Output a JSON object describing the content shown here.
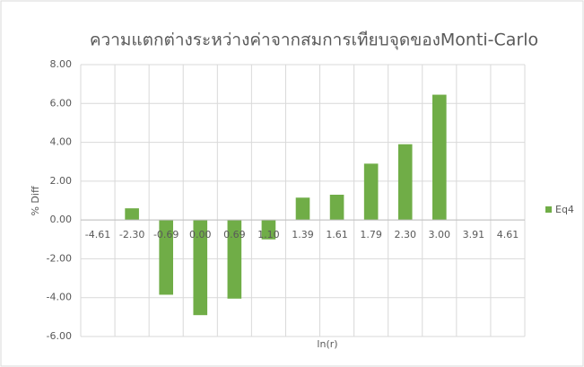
{
  "chart_data": {
    "type": "bar",
    "title": "ความแตกต่างระหว่างค่าจากสมการเทียบจุดของMonti-Carlo",
    "x_label": "ln(r)",
    "y_label": "% Diff",
    "categories": [
      "-4.61",
      "-2.30",
      "-0.69",
      "0.00",
      "0.69",
      "1.10",
      "1.39",
      "1.61",
      "1.79",
      "2.30",
      "3.00",
      "3.91",
      "4.61"
    ],
    "series": [
      {
        "name": "Eq4",
        "color": "#70ad47",
        "values": [
          null,
          0.6,
          -3.85,
          -4.9,
          -4.05,
          -1.0,
          1.15,
          1.3,
          2.9,
          3.9,
          6.45,
          null,
          null
        ]
      }
    ],
    "ylim": [
      -6,
      8
    ],
    "yticks": [
      {
        "value": -6,
        "label": "-6.00"
      },
      {
        "value": -4,
        "label": "-4.00"
      },
      {
        "value": -2,
        "label": "-2.00"
      },
      {
        "value": 0,
        "label": "0.00"
      },
      {
        "value": 2,
        "label": "2.00"
      },
      {
        "value": 4,
        "label": "4.00"
      },
      {
        "value": 6,
        "label": "6.00"
      },
      {
        "value": 8,
        "label": "8.00"
      }
    ],
    "grid": true,
    "legend": "right"
  }
}
